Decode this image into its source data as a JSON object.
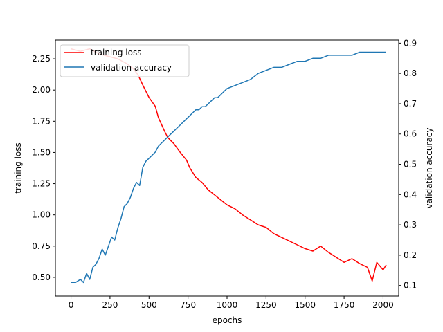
{
  "chart_data": {
    "type": "line",
    "xlabel": "epochs",
    "ylabel_left": "training loss",
    "ylabel_right": "validation accuracy",
    "xlim": [
      -100,
      2100
    ],
    "ylim_left": [
      0.35,
      2.4
    ],
    "ylim_right": [
      0.065,
      0.91
    ],
    "x_ticks": [
      0,
      250,
      500,
      750,
      1000,
      1250,
      1500,
      1750,
      2000
    ],
    "y_left_ticks": [
      0.5,
      0.75,
      1.0,
      1.25,
      1.5,
      1.75,
      2.0,
      2.25
    ],
    "y_left_tick_labels": [
      "0.50",
      "0.75",
      "1.00",
      "1.25",
      "1.50",
      "1.75",
      "2.00",
      "2.25"
    ],
    "y_right_ticks": [
      0.1,
      0.2,
      0.3,
      0.4,
      0.5,
      0.6,
      0.7,
      0.8,
      0.9
    ],
    "y_right_tick_labels": [
      "0.1",
      "0.2",
      "0.3",
      "0.4",
      "0.5",
      "0.6",
      "0.7",
      "0.8",
      "0.9"
    ],
    "legend_position": "top-left",
    "grid": false,
    "series": [
      {
        "name": "training loss",
        "axis": "left",
        "color": "#ff0000",
        "x": [
          0,
          60,
          120,
          180,
          240,
          300,
          360,
          400,
          430,
          460,
          500,
          540,
          560,
          600,
          620,
          660,
          700,
          740,
          760,
          800,
          840,
          880,
          920,
          960,
          1000,
          1050,
          1100,
          1150,
          1200,
          1250,
          1300,
          1350,
          1400,
          1450,
          1500,
          1550,
          1600,
          1650,
          1700,
          1750,
          1800,
          1850,
          1900,
          1930,
          1960,
          2000,
          2020
        ],
        "y": [
          2.33,
          2.31,
          2.33,
          2.29,
          2.27,
          2.25,
          2.21,
          2.17,
          2.12,
          2.04,
          1.94,
          1.87,
          1.78,
          1.67,
          1.62,
          1.57,
          1.5,
          1.44,
          1.38,
          1.3,
          1.26,
          1.2,
          1.16,
          1.12,
          1.08,
          1.05,
          1.0,
          0.96,
          0.92,
          0.9,
          0.85,
          0.82,
          0.79,
          0.76,
          0.73,
          0.71,
          0.75,
          0.7,
          0.66,
          0.62,
          0.65,
          0.61,
          0.58,
          0.47,
          0.62,
          0.56,
          0.6
        ]
      },
      {
        "name": "validation accuracy",
        "axis": "right",
        "color": "#1f77b4",
        "x": [
          0,
          30,
          60,
          80,
          100,
          120,
          140,
          160,
          180,
          200,
          220,
          240,
          260,
          280,
          300,
          320,
          340,
          360,
          380,
          400,
          420,
          440,
          460,
          480,
          500,
          520,
          540,
          560,
          580,
          600,
          620,
          640,
          660,
          680,
          700,
          720,
          740,
          760,
          780,
          800,
          820,
          840,
          860,
          880,
          900,
          920,
          940,
          960,
          980,
          1000,
          1050,
          1100,
          1150,
          1200,
          1250,
          1300,
          1350,
          1400,
          1450,
          1500,
          1550,
          1600,
          1650,
          1700,
          1750,
          1800,
          1850,
          1900,
          1950,
          2000,
          2020
        ],
        "y": [
          0.11,
          0.11,
          0.12,
          0.11,
          0.14,
          0.12,
          0.16,
          0.17,
          0.19,
          0.22,
          0.2,
          0.23,
          0.26,
          0.25,
          0.29,
          0.32,
          0.36,
          0.37,
          0.39,
          0.42,
          0.44,
          0.43,
          0.49,
          0.51,
          0.52,
          0.53,
          0.54,
          0.56,
          0.57,
          0.58,
          0.59,
          0.6,
          0.61,
          0.62,
          0.63,
          0.64,
          0.65,
          0.66,
          0.67,
          0.68,
          0.68,
          0.69,
          0.69,
          0.7,
          0.71,
          0.72,
          0.72,
          0.73,
          0.74,
          0.75,
          0.76,
          0.77,
          0.78,
          0.8,
          0.81,
          0.82,
          0.82,
          0.83,
          0.84,
          0.84,
          0.85,
          0.85,
          0.86,
          0.86,
          0.86,
          0.86,
          0.87,
          0.87,
          0.87,
          0.87,
          0.87
        ]
      }
    ]
  }
}
